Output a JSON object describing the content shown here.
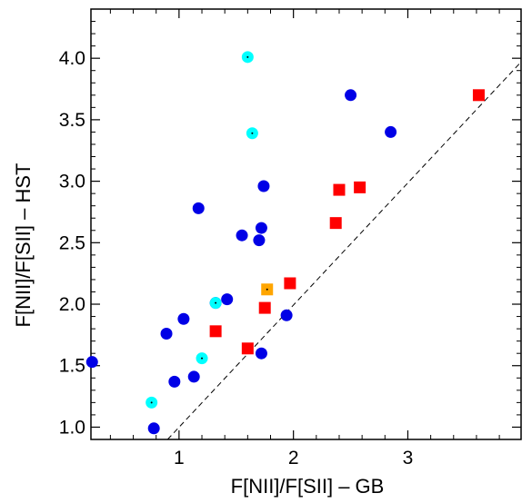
{
  "chart_data": {
    "type": "scatter",
    "title": "",
    "xlabel": "F[NII]/F[SII] – GB",
    "ylabel": "F[NII]/F[SII] – HST",
    "xlim": [
      0.23,
      3.99
    ],
    "ylim": [
      0.9,
      4.4
    ],
    "x_ticks": [
      1,
      2,
      3
    ],
    "x_tick_labels": [
      "1",
      "2",
      "3"
    ],
    "y_ticks": [
      1.0,
      1.5,
      2.0,
      2.5,
      3.0,
      3.5,
      4.0
    ],
    "y_tick_labels": [
      "1.0",
      "1.5",
      "2.0",
      "2.5",
      "3.0",
      "3.5",
      "4.0"
    ],
    "grid": false,
    "reference_line": {
      "style": "dashed",
      "points": [
        [
          0.9,
          0.9
        ],
        [
          3.99,
          3.97
        ]
      ]
    },
    "colors": {
      "blue_circle": "#0000e6",
      "cyan_circle": "#00ffff",
      "red_square": "#ff0000",
      "orange_square": "#ffa500"
    },
    "series": [
      {
        "marker": "circle",
        "color": "#0000e6",
        "points": [
          [
            0.24,
            1.53
          ],
          [
            0.78,
            0.99
          ],
          [
            0.89,
            1.76
          ],
          [
            0.96,
            1.37
          ],
          [
            1.04,
            1.88
          ],
          [
            1.13,
            1.41
          ],
          [
            1.17,
            2.78
          ],
          [
            1.32,
            2.01
          ],
          [
            1.42,
            2.04
          ],
          [
            1.55,
            2.56
          ],
          [
            1.7,
            2.52
          ],
          [
            1.72,
            2.62
          ],
          [
            1.74,
            2.96
          ],
          [
            1.72,
            1.6
          ],
          [
            1.94,
            1.91
          ],
          [
            2.5,
            3.7
          ],
          [
            2.85,
            3.4
          ]
        ]
      },
      {
        "marker": "circle-dot",
        "color": "#00ffff",
        "points": [
          [
            1.6,
            4.01
          ],
          [
            1.64,
            3.39
          ],
          [
            0.76,
            1.2
          ],
          [
            1.2,
            1.56
          ],
          [
            1.32,
            2.01
          ]
        ]
      },
      {
        "marker": "square",
        "color": "#ff0000",
        "points": [
          [
            1.32,
            1.78
          ],
          [
            1.6,
            1.64
          ],
          [
            1.75,
            1.97
          ],
          [
            1.97,
            2.17
          ],
          [
            2.37,
            2.66
          ],
          [
            2.4,
            2.93
          ],
          [
            2.58,
            2.95
          ],
          [
            3.62,
            3.7
          ]
        ]
      },
      {
        "marker": "square-dot",
        "color": "#ffa500",
        "points": [
          [
            1.77,
            2.12
          ]
        ]
      }
    ]
  }
}
